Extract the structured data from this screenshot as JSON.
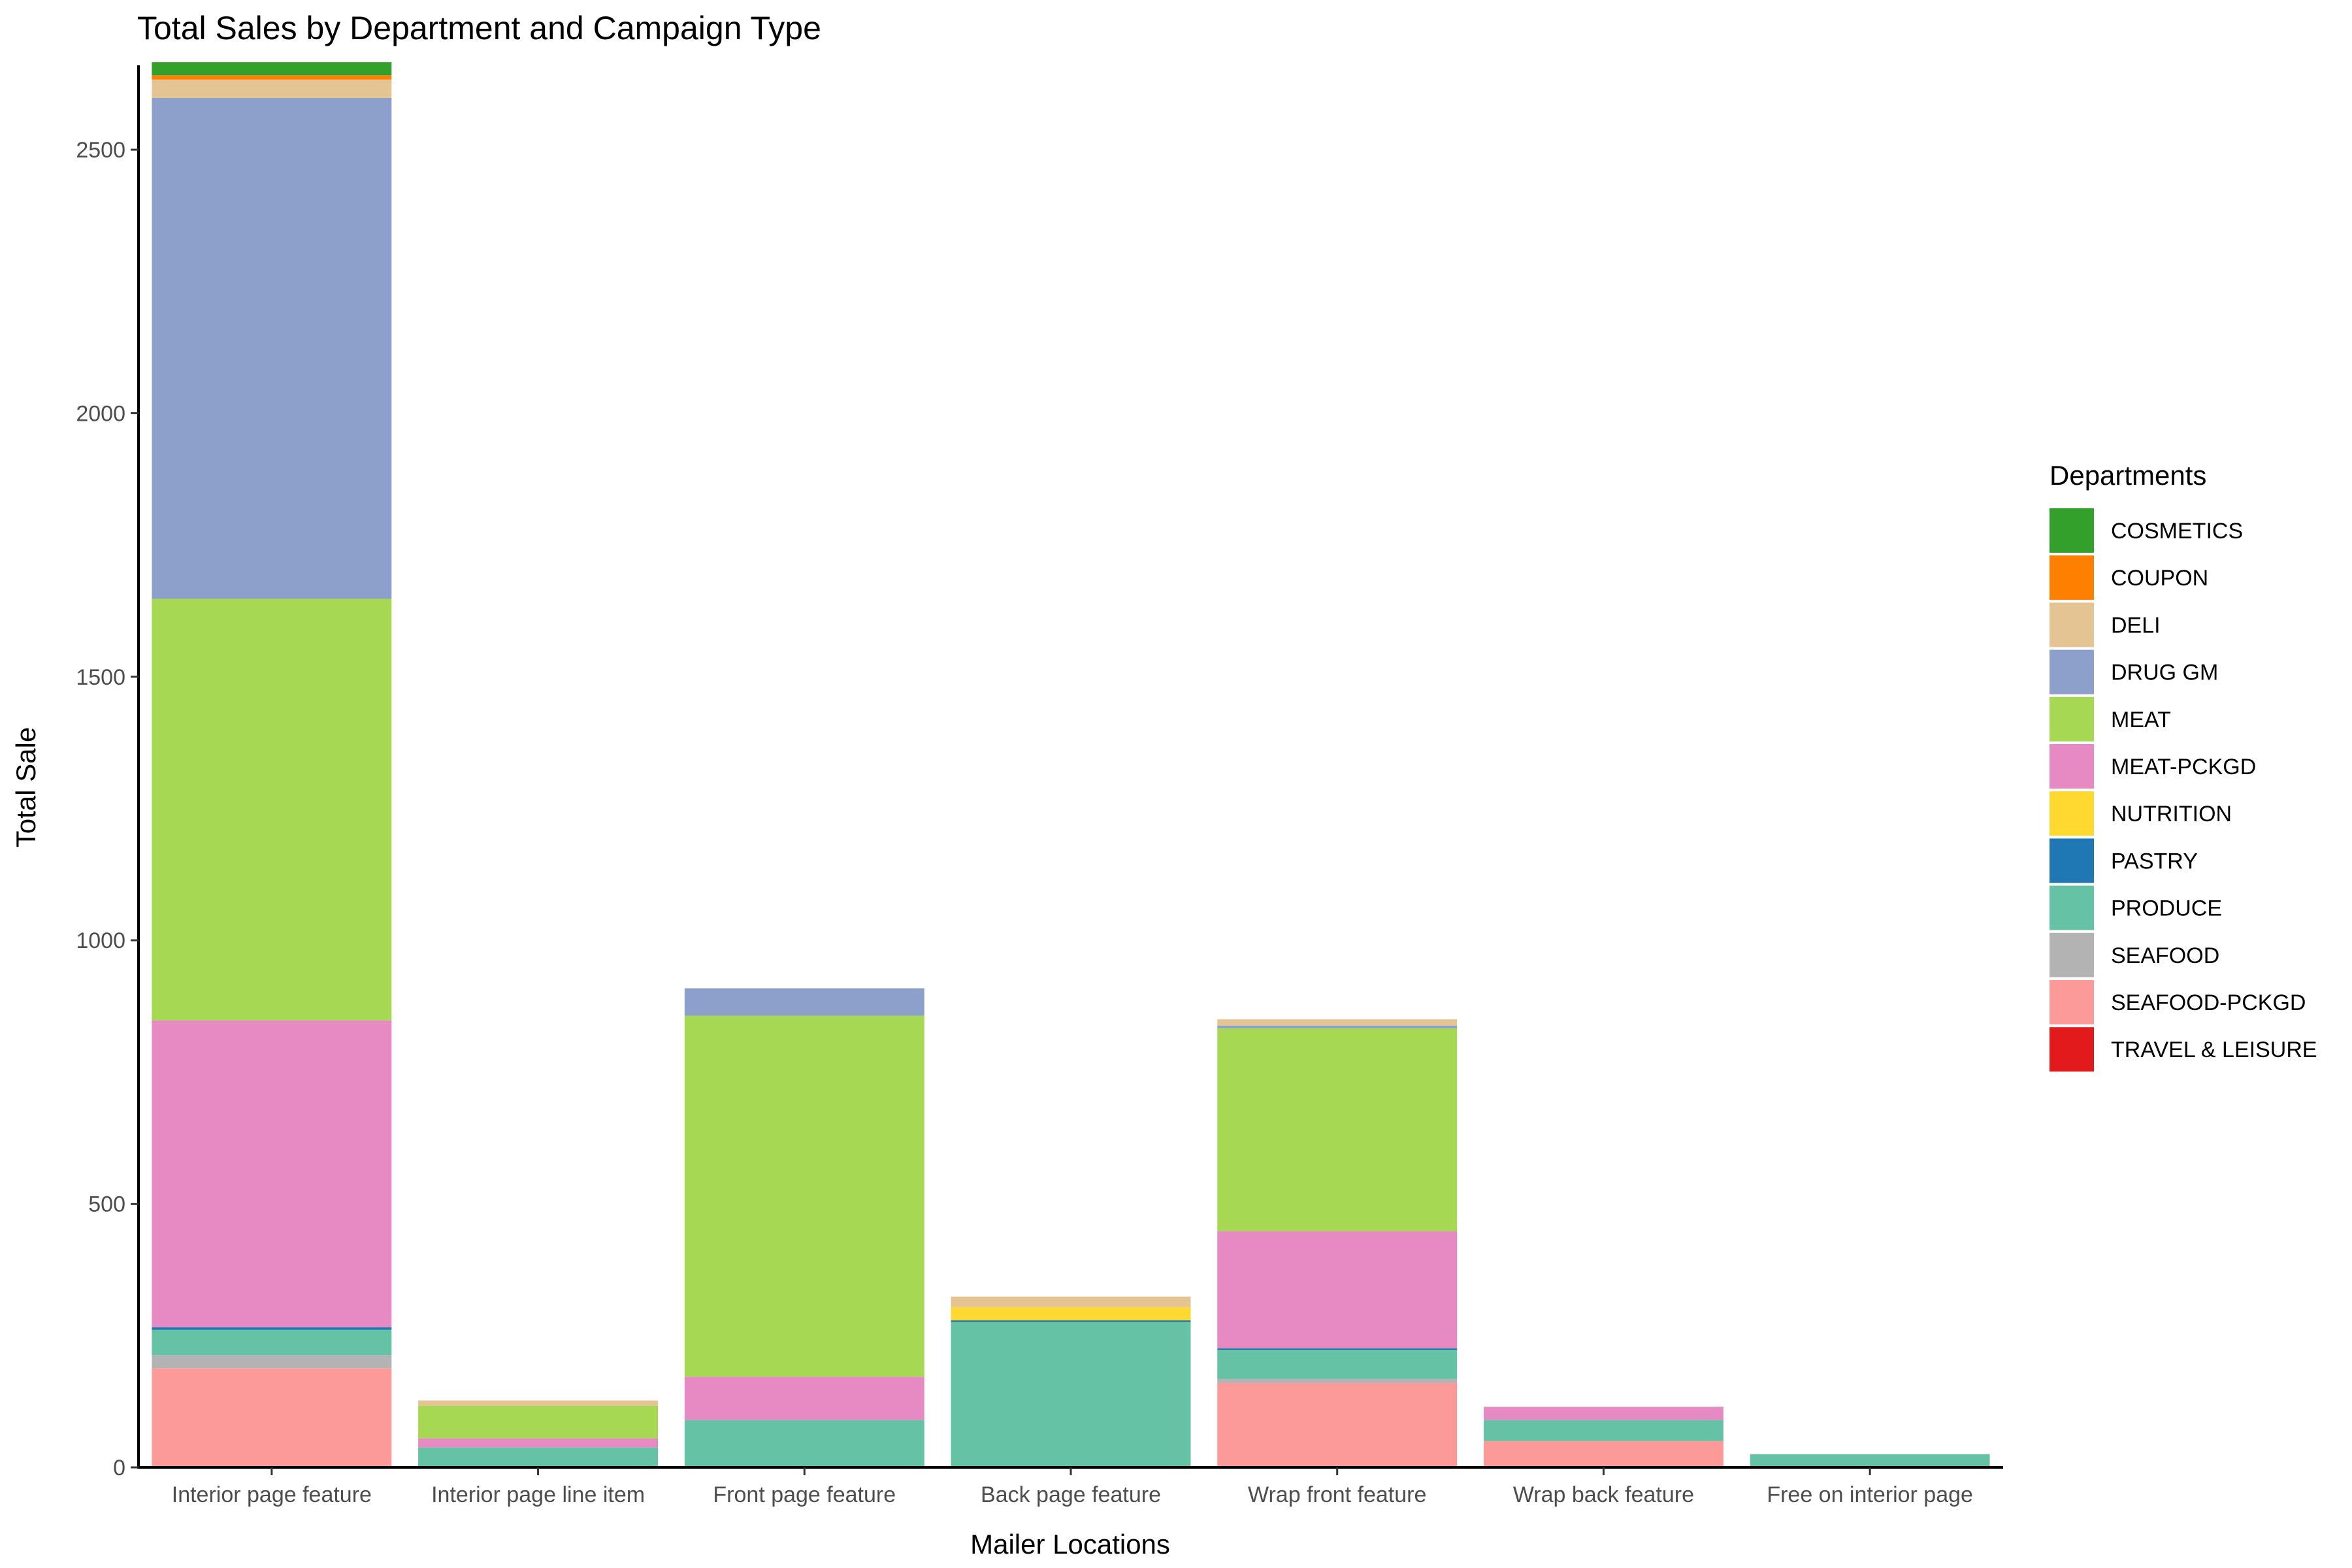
{
  "chart_data": {
    "type": "bar",
    "stacked": true,
    "title": "Total Sales by Department and Campaign Type",
    "xlabel": "Mailer Locations",
    "ylabel": "Total Sale",
    "ylim": [
      0,
      2660
    ],
    "yticks": [
      0,
      500,
      1000,
      1500,
      2000,
      2500
    ],
    "grid": false,
    "legend": {
      "title": "Departments",
      "position": "right"
    },
    "categories": [
      "Interior page feature",
      "Interior page line item",
      "Front page feature",
      "Back page feature",
      "Wrap front feature",
      "Wrap back feature",
      "Free on interior page"
    ],
    "series": [
      {
        "name": "SEAFOOD-PCKGD",
        "color": "#FB9A99",
        "values": [
          188,
          0,
          0,
          0,
          160,
          50,
          0
        ]
      },
      {
        "name": "SEAFOOD",
        "color": "#B3B3B3",
        "values": [
          25,
          0,
          0,
          0,
          8,
          0,
          0
        ]
      },
      {
        "name": "PRODUCE",
        "color": "#66C2A5",
        "values": [
          48,
          38,
          90,
          276,
          55,
          40,
          25
        ]
      },
      {
        "name": "PASTRY",
        "color": "#1F78B4",
        "values": [
          5,
          0,
          0,
          3,
          3,
          0,
          0
        ]
      },
      {
        "name": "MEAT-PCKGD",
        "color": "#E78AC3",
        "values": [
          582,
          17,
          82,
          0,
          222,
          25,
          0
        ]
      },
      {
        "name": "MEAT",
        "color": "#A6D854",
        "values": [
          800,
          62,
          685,
          0,
          385,
          0,
          0
        ]
      },
      {
        "name": "DRUG GM",
        "color": "#8DA0CB",
        "values": [
          950,
          0,
          52,
          0,
          5,
          0,
          0
        ]
      },
      {
        "name": "NUTRITION",
        "color": "#FFD92F",
        "values": [
          0,
          0,
          0,
          25,
          0,
          0,
          0
        ]
      },
      {
        "name": "DELI",
        "color": "#E5C494",
        "values": [
          35,
          10,
          0,
          20,
          12,
          0,
          0
        ]
      },
      {
        "name": "COUPON",
        "color": "#FF7F00",
        "values": [
          8,
          0,
          0,
          0,
          0,
          0,
          0
        ]
      },
      {
        "name": "COSMETICS",
        "color": "#33A02C",
        "values": [
          25,
          0,
          0,
          0,
          0,
          0,
          0
        ]
      },
      {
        "name": "TRAVEL & LEISURE",
        "color": "#E31A1C",
        "values": [
          0,
          0,
          0,
          0,
          0,
          0,
          0
        ]
      }
    ],
    "legend_order": [
      "COSMETICS",
      "COUPON",
      "DELI",
      "DRUG GM",
      "MEAT",
      "MEAT-PCKGD",
      "NUTRITION",
      "PASTRY",
      "PRODUCE",
      "SEAFOOD",
      "SEAFOOD-PCKGD",
      "TRAVEL & LEISURE"
    ]
  }
}
